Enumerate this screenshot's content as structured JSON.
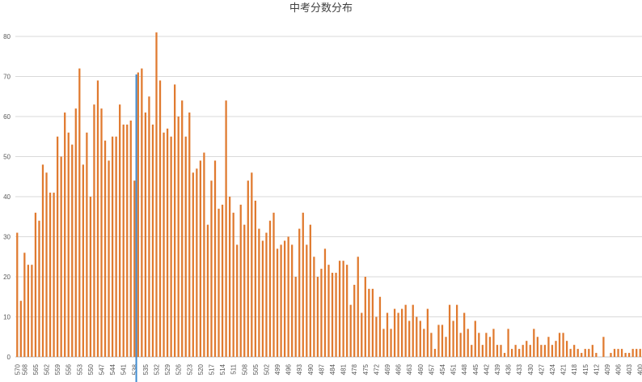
{
  "chart_data": {
    "type": "bar",
    "title": "中考分数分布",
    "xlabel": "",
    "ylabel": "",
    "ylim": [
      0,
      80
    ],
    "yticks": [
      0,
      10,
      20,
      30,
      40,
      50,
      60,
      70,
      80
    ],
    "grid": "horizontal",
    "legend": "none",
    "bar_color": "#E07A2F",
    "marker_color": "#3F8BD0",
    "marker_score": 538,
    "x_tick_labels": [
      "570",
      "568",
      "565",
      "562",
      "559",
      "556",
      "553",
      "550",
      "547",
      "544",
      "541",
      "538",
      "535",
      "532",
      "529",
      "526",
      "523",
      "520",
      "517",
      "514",
      "511",
      "508",
      "505",
      "502",
      "499",
      "496",
      "493",
      "490",
      "487",
      "484",
      "481",
      "478",
      "475",
      "472",
      "469",
      "466",
      "463",
      "460",
      "457",
      "454",
      "451",
      "448",
      "445",
      "442",
      "439",
      "436",
      "433",
      "430",
      "427",
      "424",
      "421",
      "418",
      "415",
      "412",
      "409",
      "406",
      "403",
      "400"
    ],
    "scores": [
      570,
      569,
      568,
      567,
      566,
      565,
      564,
      563,
      562,
      561,
      560,
      559,
      558,
      557,
      556,
      555,
      554,
      553,
      552,
      551,
      550,
      549,
      548,
      547,
      546,
      545,
      544,
      543,
      542,
      541,
      540,
      539,
      538,
      537,
      536,
      535,
      534,
      533,
      532,
      531,
      530,
      529,
      528,
      527,
      526,
      525,
      524,
      523,
      522,
      521,
      520,
      519,
      518,
      517,
      516,
      515,
      514,
      513,
      512,
      511,
      510,
      509,
      508,
      507,
      506,
      505,
      504,
      503,
      502,
      501,
      500,
      499,
      498,
      497,
      496,
      495,
      494,
      493,
      492,
      491,
      490,
      489,
      488,
      487,
      486,
      485,
      484,
      483,
      482,
      481,
      480,
      479,
      478,
      477,
      476,
      475,
      474,
      473,
      472,
      471,
      470,
      469,
      468,
      467,
      466,
      465,
      464,
      463,
      462,
      461,
      460,
      459,
      458,
      457,
      456,
      455,
      454,
      453,
      452,
      451,
      450,
      449,
      448,
      447,
      446,
      445,
      444,
      443,
      442,
      441,
      440,
      439,
      438,
      437,
      436,
      435,
      434,
      433,
      432,
      431,
      430,
      429,
      428,
      427,
      426,
      425,
      424,
      423,
      422,
      421,
      420,
      419,
      418,
      417,
      416,
      415,
      414,
      413,
      412,
      411,
      410,
      409,
      408,
      407,
      406,
      405,
      404,
      403,
      402,
      401,
      400
    ],
    "values": [
      31,
      14,
      26,
      23,
      23,
      36,
      34,
      48,
      46,
      41,
      41,
      55,
      50,
      61,
      56,
      53,
      62,
      72,
      48,
      56,
      40,
      63,
      69,
      62,
      54,
      49,
      55,
      55,
      63,
      58,
      58,
      59,
      44,
      71,
      72,
      61,
      65,
      58,
      81,
      69,
      56,
      57,
      55,
      68,
      60,
      64,
      55,
      61,
      46,
      47,
      49,
      51,
      33,
      44,
      49,
      37,
      38,
      64,
      40,
      36,
      28,
      38,
      33,
      44,
      46,
      39,
      32,
      29,
      31,
      34,
      36,
      27,
      28,
      29,
      30,
      28,
      20,
      32,
      36,
      28,
      33,
      25,
      20,
      22,
      27,
      23,
      21,
      21,
      24,
      24,
      23,
      13,
      18,
      25,
      11,
      20,
      17,
      17,
      10,
      15,
      7,
      11,
      7,
      12,
      11,
      12,
      13,
      9,
      13,
      10,
      9,
      7,
      12,
      6,
      2,
      8,
      8,
      5,
      13,
      9,
      13,
      6,
      11,
      7,
      3,
      9,
      6,
      3,
      6,
      5,
      7,
      3,
      3,
      1,
      7,
      2,
      3,
      2,
      3,
      4,
      3,
      7,
      5,
      3,
      3,
      5,
      3,
      4,
      6,
      6,
      4,
      2,
      3,
      2,
      1,
      2,
      2,
      3,
      1,
      0,
      5,
      0,
      1,
      2,
      2,
      2,
      1,
      1,
      2,
      2,
      2
    ]
  }
}
